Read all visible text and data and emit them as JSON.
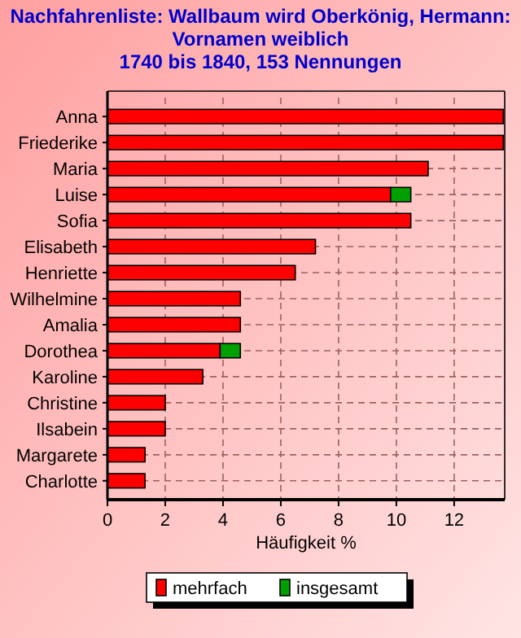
{
  "chart_data": {
    "type": "bar",
    "orientation": "horizontal",
    "stacked": true,
    "title": "Nachfahrenliste: Wallbaum wird Oberkönig, Hermann:\nVornamen weiblich\n1740 bis 1840, 153 Nennungen",
    "xlabel": "Häufigkeit %",
    "categories": [
      "Anna",
      "Friederike",
      "Maria",
      "Luise",
      "Sofia",
      "Elisabeth",
      "Henriette",
      "Wilhelmine",
      "Amalia",
      "Dorothea",
      "Karoline",
      "Christine",
      "Ilsabein",
      "Margarete",
      "Charlotte"
    ],
    "series": [
      {
        "name": "mehrfach",
        "color": "#ff0000",
        "values": [
          13.7,
          13.7,
          11.1,
          9.8,
          10.5,
          7.2,
          6.5,
          4.6,
          4.6,
          3.9,
          3.3,
          2.0,
          2.0,
          1.3,
          1.3
        ]
      },
      {
        "name": "insgesamt",
        "color": "#00a000",
        "values": [
          0,
          0,
          0,
          0.7,
          0,
          0,
          0,
          0,
          0,
          0.7,
          0,
          0,
          0,
          0,
          0
        ]
      }
    ],
    "xlim": [
      0,
      13.75
    ],
    "xticks": [
      0,
      2,
      4,
      6,
      8,
      10,
      12
    ],
    "grid": true,
    "legend": "bottom"
  }
}
